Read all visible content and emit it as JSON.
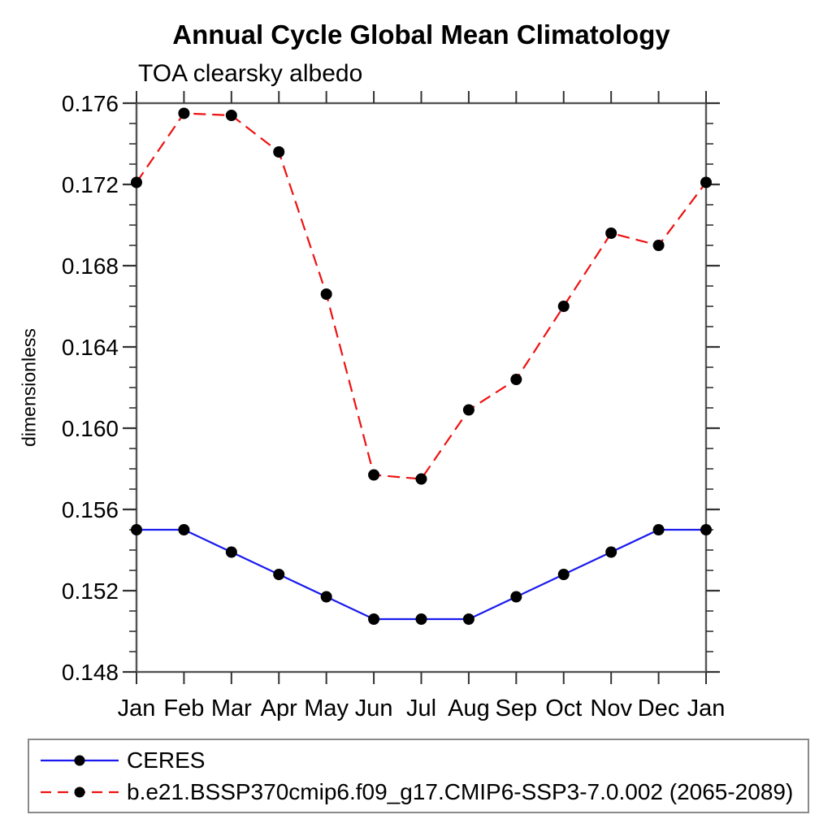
{
  "page": {
    "background": "#ffffff",
    "frame_color": "#555555",
    "tick_color": "#333333",
    "text_color": "#000000",
    "legend_border_color": "#8a8a8a"
  },
  "chart_data": {
    "type": "line",
    "title": "Annual Cycle Global Mean Climatology",
    "subtitle": "TOA clearsky albedo",
    "ylabel": "dimensionless",
    "xlabel": "",
    "categories": [
      "Jan",
      "Feb",
      "Mar",
      "Apr",
      "May",
      "Jun",
      "Jul",
      "Aug",
      "Sep",
      "Oct",
      "Nov",
      "Dec",
      "Jan"
    ],
    "ylim": [
      0.148,
      0.176
    ],
    "ytick_major_step": 0.004,
    "ytick_minor_step": 0.001,
    "ytick_labels": [
      "0.148",
      "0.152",
      "0.156",
      "0.160",
      "0.164",
      "0.168",
      "0.172",
      "0.176"
    ],
    "grid": false,
    "legend_position": "bottom-left-box",
    "marker": "filled-circle",
    "marker_color": "#000000",
    "series": [
      {
        "name": "CERES",
        "color": "#1a1aee",
        "line_style": "solid",
        "values": [
          0.155,
          0.155,
          0.1539,
          0.1528,
          0.1517,
          0.1506,
          0.1506,
          0.1506,
          0.1517,
          0.1528,
          0.1539,
          0.155,
          0.155
        ]
      },
      {
        "name": "b.e21.BSSP370cmip6.f09_g17.CMIP6-SSP3-7.0.002 (2065-2089)",
        "color": "#ee1111",
        "line_style": "dashed",
        "values": [
          0.1721,
          0.1755,
          0.1754,
          0.1736,
          0.1666,
          0.1577,
          0.1575,
          0.1609,
          0.1624,
          0.166,
          0.1696,
          0.169,
          0.1721
        ]
      }
    ]
  }
}
